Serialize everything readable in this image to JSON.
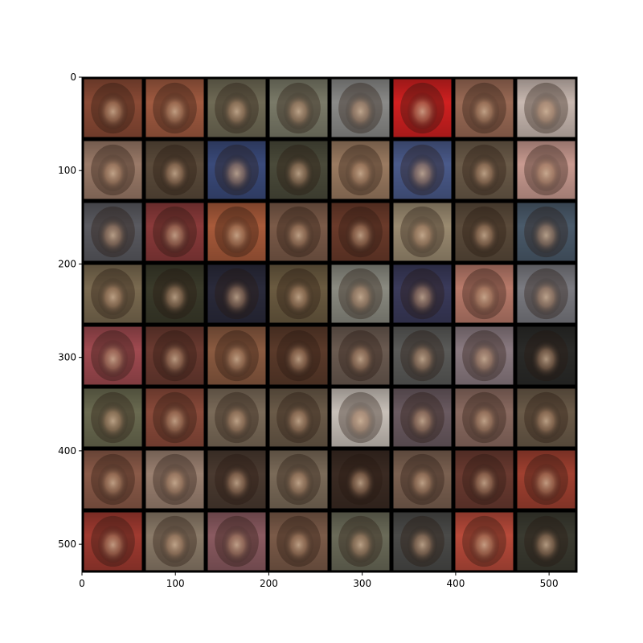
{
  "image": {
    "description_grid": "8x8 grid of generated face samples",
    "rows": 8,
    "cols": 8,
    "image_extent": [
      0,
      530
    ],
    "border_color": "#000000"
  },
  "axes": {
    "x_ticks": [
      0,
      100,
      200,
      300,
      400,
      500
    ],
    "y_ticks": [
      0,
      100,
      200,
      300,
      400,
      500
    ],
    "x_tick_labels": [
      "0",
      "100",
      "200",
      "300",
      "400",
      "500"
    ],
    "y_tick_labels": [
      "0",
      "100",
      "200",
      "300",
      "400",
      "500"
    ]
  },
  "tiles": [
    [
      "#8a4a35",
      "#a05a40",
      "#6f6a55",
      "#7a7a68",
      "#8a8a88",
      "#d02020",
      "#9a6a55",
      "#c8b8b0"
    ],
    [
      "#9a7a68",
      "#5a4a3a",
      "#3a4a7a",
      "#4a4a3a",
      "#9a7a60",
      "#4a5a8a",
      "#6a5a48",
      "#c89a90"
    ],
    [
      "#5a5a60",
      "#8a3a3a",
      "#a85a3a",
      "#7a5a48",
      "#6a3a2a",
      "#9a8a70",
      "#5a4a3a",
      "#4a5a6a"
    ],
    [
      "#7a6a50",
      "#3a3a2a",
      "#2a2a3a",
      "#6a5a40",
      "#8a8a80",
      "#3a3a5a",
      "#b87a6a",
      "#7a7a80"
    ],
    [
      "#a04a50",
      "#6a3a30",
      "#8a5a40",
      "#5a3a2a",
      "#6a5a50",
      "#5a5a58",
      "#8a7a80",
      "#2a2a28"
    ],
    [
      "#6a6a50",
      "#8a4a3a",
      "#7a6a58",
      "#6a5a48",
      "#c8c0b8",
      "#6a5a60",
      "#8a6a60",
      "#6a5a48"
    ],
    [
      "#8a5a48",
      "#9a8070",
      "#4a3a30",
      "#7a6a58",
      "#3a2a22",
      "#7a6050",
      "#6a3a30",
      "#a04030"
    ],
    [
      "#a03a30",
      "#8a7a68",
      "#8a5a60",
      "#7a5a48",
      "#6a6a58",
      "#4a4a48",
      "#b84a3a",
      "#3a3a30"
    ]
  ]
}
